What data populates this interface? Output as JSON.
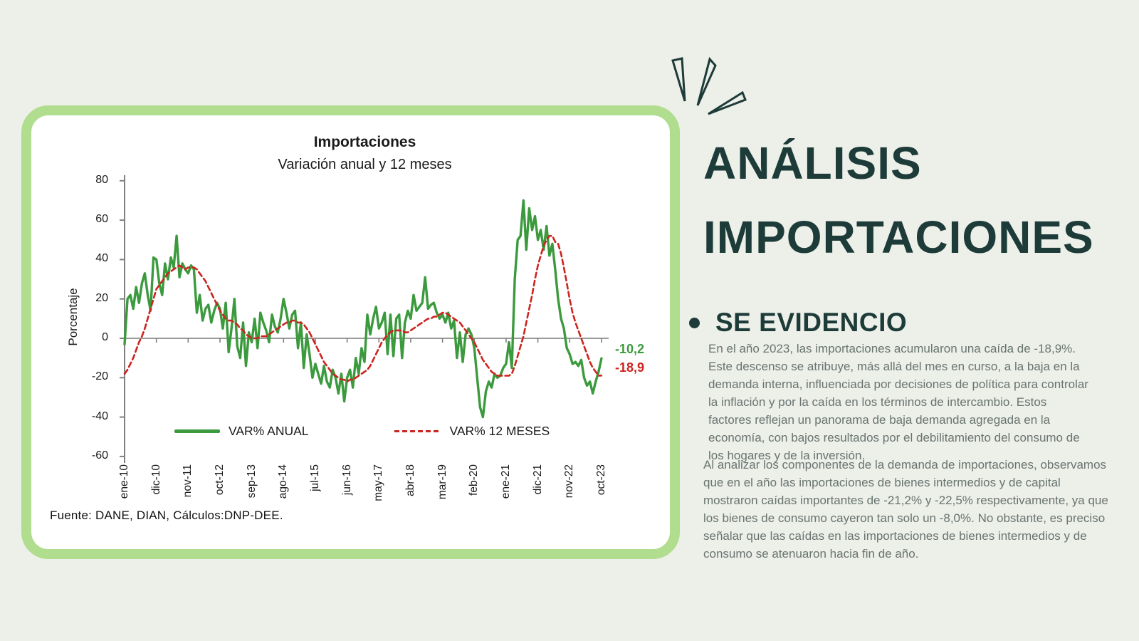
{
  "colors": {
    "page_bg": "#edefe9",
    "card_border": "#b1dd8e",
    "card_bg": "#ffffff",
    "dark_teal": "#1d3b38",
    "body_gray": "#697470",
    "green_series": "#3b9a3d",
    "red_series": "#cc241e",
    "axis_gray": "#9b9b9b",
    "chart_text": "#1a1a1a"
  },
  "chart": {
    "title": "Importaciones",
    "subtitle": "Variación anual y 12 meses",
    "ylabel": "Porcentaje",
    "source": "Fuente: DANE, DIAN, Cálculos:DNP-DEE.",
    "legend": {
      "anual": "VAR% ANUAL",
      "meses": "VAR% 12 MESES"
    },
    "end_labels": {
      "anual": "-10,2",
      "meses": "-18,9"
    }
  },
  "chart_data": {
    "type": "line",
    "title": "Importaciones",
    "subtitle": "Variación anual y 12 meses",
    "ylabel": "Porcentaje",
    "ylim": [
      -60,
      80
    ],
    "yticks": [
      80,
      60,
      40,
      20,
      0,
      -20,
      -40,
      -60
    ],
    "x_unit": "monthly, ene-2010 to oct-2023 (166 points)",
    "xticklabels": [
      "ene-10",
      "dic-10",
      "nov-11",
      "oct-12",
      "sep-13",
      "ago-14",
      "jul-15",
      "jun-16",
      "may-17",
      "abr-18",
      "mar-19",
      "feb-20",
      "ene-21",
      "dic-21",
      "nov-22",
      "oct-23"
    ],
    "xtick_step_months": 11,
    "grid": false,
    "legend_position": "bottom",
    "series": [
      {
        "name": "VAR% ANUAL",
        "color": "#3b9a3d",
        "style": "solid",
        "last_value": -10.2,
        "values": [
          -3,
          20,
          22,
          15,
          26,
          18,
          28,
          33,
          22,
          14,
          41,
          40,
          28,
          22,
          38,
          30,
          41,
          36,
          52,
          31,
          38,
          35,
          33,
          37,
          35,
          13,
          22,
          9,
          15,
          17,
          8,
          14,
          18,
          15,
          5,
          18,
          -7,
          5,
          20,
          -4,
          -10,
          8,
          -14,
          3,
          -2,
          10,
          -5,
          13,
          8,
          4,
          -2,
          12,
          6,
          3,
          10,
          20,
          13,
          5,
          12,
          14,
          -5,
          8,
          -15,
          2,
          -8,
          -20,
          -13,
          -18,
          -23,
          -14,
          -22,
          -25,
          -16,
          -20,
          -28,
          -18,
          -32,
          -20,
          -16,
          -25,
          -10,
          -18,
          -5,
          -12,
          12,
          2,
          10,
          16,
          5,
          8,
          13,
          -8,
          12,
          -9,
          10,
          12,
          -10,
          8,
          14,
          10,
          22,
          14,
          16,
          18,
          31,
          15,
          17,
          18,
          13,
          10,
          12,
          8,
          13,
          5,
          9,
          -10,
          3,
          -12,
          2,
          5,
          2,
          -5,
          -20,
          -35,
          -40,
          -27,
          -22,
          -25,
          -18,
          -20,
          -19,
          -15,
          -13,
          -2,
          -15,
          30,
          50,
          52,
          70,
          45,
          66,
          55,
          62,
          50,
          55,
          45,
          57,
          42,
          48,
          35,
          20,
          10,
          5,
          -5,
          -8,
          -13,
          -12,
          -14,
          -11,
          -20,
          -24,
          -22,
          -28,
          -22,
          -17,
          -10.2
        ]
      },
      {
        "name": "VAR% 12 MESES",
        "color": "#cc241e",
        "style": "dashed",
        "last_value": -18.9,
        "values": [
          -18,
          -16,
          -13,
          -10,
          -6,
          -2,
          1,
          5,
          10,
          15,
          20,
          25,
          27,
          29,
          31,
          33,
          34,
          35,
          36,
          37,
          36,
          35,
          36,
          36,
          36,
          35,
          33,
          31,
          29,
          26,
          23,
          20,
          17,
          14,
          12,
          10,
          9,
          9,
          8,
          7,
          5,
          4,
          2,
          1,
          0,
          0,
          0,
          1,
          1,
          1,
          2,
          3,
          4,
          5,
          6,
          7,
          8,
          8,
          9,
          9,
          8,
          8,
          7,
          5,
          3,
          0,
          -3,
          -6,
          -9,
          -12,
          -14,
          -16,
          -18,
          -19,
          -20,
          -21,
          -21,
          -22,
          -21,
          -21,
          -20,
          -19,
          -18,
          -17,
          -16,
          -14,
          -11,
          -8,
          -5,
          -2,
          0,
          2,
          3,
          4,
          4,
          4,
          4,
          3,
          3,
          4,
          5,
          6,
          7,
          8,
          9,
          10,
          10,
          11,
          11,
          12,
          13,
          13,
          12,
          11,
          10,
          9,
          8,
          6,
          4,
          2,
          0,
          -2,
          -5,
          -8,
          -11,
          -13,
          -15,
          -17,
          -18,
          -19,
          -19,
          -19,
          -19,
          -19,
          -18,
          -14,
          -9,
          -4,
          1,
          8,
          15,
          22,
          30,
          37,
          42,
          47,
          50,
          52,
          52,
          49,
          48,
          43,
          36,
          28,
          20,
          13,
          8,
          4,
          0,
          -4,
          -8,
          -12,
          -15,
          -17,
          -19,
          -18.9
        ]
      }
    ]
  },
  "panel": {
    "title_line1": "ANÁLISIS",
    "title_line2": "IMPORTACIONES",
    "section_heading": "SE EVIDENCIO",
    "paragraph1": "En el año 2023, las importaciones acumularon una caída de -18,9%. Este descenso se atribuye, más allá del mes en curso, a la baja en la demanda interna, influenciada por decisiones de política para controlar la inflación y por la caída en los términos de intercambio. Estos factores reflejan un panorama de baja demanda agregada en la economía, con bajos resultados por el debilitamiento del consumo de los hogares y de la inversión.",
    "paragraph2": "Al analizar los componentes de la demanda de importaciones, observamos que en el año las importaciones de bienes intermedios y de capital mostraron caídas importantes de -21,2% y -22,5% respectivamente, ya que los bienes de consumo cayeron tan solo un -8,0%. No obstante, es preciso señalar que las caídas en las importaciones de bienes intermedios y de consumo se atenuaron hacia fin de año."
  }
}
